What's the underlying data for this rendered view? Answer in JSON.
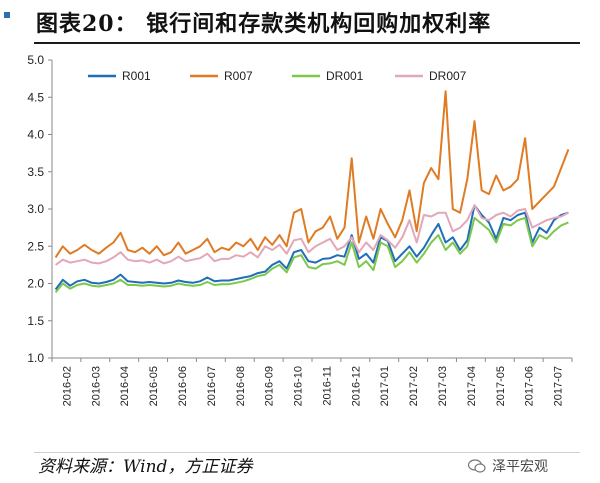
{
  "title": "图表20：  银行间和存款类机构回购加权利率",
  "source": "资料来源：Wind，方正证券",
  "brand": "泽平宏观",
  "colors": {
    "R001": "#1f6fb8",
    "R007": "#e07b24",
    "DR001": "#7cc84a",
    "DR007": "#e2a7b8",
    "axis": "#888888",
    "text": "#222222"
  },
  "chart_data": {
    "type": "line",
    "title": "",
    "xlabel": "",
    "ylabel": "",
    "ylim": [
      1.0,
      5.0
    ],
    "yticks": [
      "1.0",
      "1.5",
      "2.0",
      "2.5",
      "3.0",
      "3.5",
      "4.0",
      "4.5",
      "5.0"
    ],
    "x_categories": [
      "2016-02",
      "2016-03",
      "2016-04",
      "2016-05",
      "2016-06",
      "2016-07",
      "2016-08",
      "2016-09",
      "2016-10",
      "2016-11",
      "2016-12",
      "2017-01",
      "2017-02",
      "2017-03",
      "2017-04",
      "2017-05",
      "2017-06",
      "2017-07"
    ],
    "legend_position": "top",
    "grid": false,
    "series": [
      {
        "name": "R001",
        "x": [
          "2016-02",
          "2016-02",
          "2016-02",
          "2016-02",
          "2016-03",
          "2016-03",
          "2016-03",
          "2016-03",
          "2016-04",
          "2016-04",
          "2016-04",
          "2016-04",
          "2016-05",
          "2016-05",
          "2016-05",
          "2016-05",
          "2016-06",
          "2016-06",
          "2016-06",
          "2016-06",
          "2016-07",
          "2016-07",
          "2016-07",
          "2016-07",
          "2016-08",
          "2016-08",
          "2016-08",
          "2016-08",
          "2016-09",
          "2016-09",
          "2016-09",
          "2016-09",
          "2016-10",
          "2016-10",
          "2016-10",
          "2016-10",
          "2016-11",
          "2016-11",
          "2016-11",
          "2016-11",
          "2016-12",
          "2016-12",
          "2016-12",
          "2016-12",
          "2017-01",
          "2017-01",
          "2017-01",
          "2017-01",
          "2017-02",
          "2017-02",
          "2017-02",
          "2017-02",
          "2017-03",
          "2017-03",
          "2017-03",
          "2017-03",
          "2017-04",
          "2017-04",
          "2017-04",
          "2017-04",
          "2017-05",
          "2017-05",
          "2017-05",
          "2017-05",
          "2017-06",
          "2017-06",
          "2017-06",
          "2017-06",
          "2017-07",
          "2017-07",
          "2017-07",
          "2017-07"
        ],
        "values": [
          1.92,
          2.05,
          1.97,
          2.03,
          2.05,
          2.01,
          2.0,
          2.02,
          2.05,
          2.12,
          2.03,
          2.02,
          2.01,
          2.02,
          2.01,
          2.0,
          2.01,
          2.04,
          2.02,
          2.01,
          2.03,
          2.08,
          2.03,
          2.04,
          2.04,
          2.06,
          2.08,
          2.1,
          2.14,
          2.16,
          2.25,
          2.3,
          2.2,
          2.42,
          2.45,
          2.3,
          2.28,
          2.33,
          2.34,
          2.38,
          2.36,
          2.65,
          2.33,
          2.4,
          2.28,
          2.62,
          2.57,
          2.3,
          2.4,
          2.5,
          2.36,
          2.48,
          2.65,
          2.8,
          2.55,
          2.62,
          2.45,
          2.58,
          3.05,
          2.92,
          2.82,
          2.6,
          2.88,
          2.85,
          2.92,
          2.95,
          2.55,
          2.75,
          2.68,
          2.85,
          2.92,
          2.95
        ]
      },
      {
        "name": "R007",
        "x": [
          "2016-02",
          "2016-02",
          "2016-02",
          "2016-02",
          "2016-03",
          "2016-03",
          "2016-03",
          "2016-03",
          "2016-04",
          "2016-04",
          "2016-04",
          "2016-04",
          "2016-05",
          "2016-05",
          "2016-05",
          "2016-05",
          "2016-06",
          "2016-06",
          "2016-06",
          "2016-06",
          "2016-07",
          "2016-07",
          "2016-07",
          "2016-07",
          "2016-08",
          "2016-08",
          "2016-08",
          "2016-08",
          "2016-09",
          "2016-09",
          "2016-09",
          "2016-09",
          "2016-10",
          "2016-10",
          "2016-10",
          "2016-10",
          "2016-11",
          "2016-11",
          "2016-11",
          "2016-11",
          "2016-12",
          "2016-12",
          "2016-12",
          "2016-12",
          "2017-01",
          "2017-01",
          "2017-01",
          "2017-01",
          "2017-02",
          "2017-02",
          "2017-02",
          "2017-02",
          "2017-03",
          "2017-03",
          "2017-03",
          "2017-03",
          "2017-04",
          "2017-04",
          "2017-04",
          "2017-04",
          "2017-05",
          "2017-05",
          "2017-05",
          "2017-05",
          "2017-06",
          "2017-06",
          "2017-06",
          "2017-06",
          "2017-07",
          "2017-07",
          "2017-07",
          "2017-07"
        ],
        "values": [
          2.35,
          2.5,
          2.4,
          2.45,
          2.52,
          2.45,
          2.4,
          2.48,
          2.55,
          2.68,
          2.45,
          2.42,
          2.48,
          2.4,
          2.5,
          2.38,
          2.42,
          2.55,
          2.4,
          2.45,
          2.5,
          2.6,
          2.42,
          2.48,
          2.45,
          2.55,
          2.5,
          2.6,
          2.45,
          2.62,
          2.52,
          2.65,
          2.5,
          2.95,
          3.0,
          2.55,
          2.7,
          2.75,
          2.9,
          2.6,
          2.75,
          3.68,
          2.55,
          2.9,
          2.6,
          3.0,
          2.8,
          2.62,
          2.85,
          3.25,
          2.7,
          3.35,
          3.55,
          3.4,
          4.58,
          3.0,
          2.95,
          3.4,
          4.18,
          3.25,
          3.2,
          3.45,
          3.25,
          3.3,
          3.4,
          3.95,
          3.0,
          3.1,
          3.2,
          3.3,
          3.55,
          3.8
        ]
      },
      {
        "name": "DR001",
        "x": [
          "2016-02",
          "2016-02",
          "2016-02",
          "2016-02",
          "2016-03",
          "2016-03",
          "2016-03",
          "2016-03",
          "2016-04",
          "2016-04",
          "2016-04",
          "2016-04",
          "2016-05",
          "2016-05",
          "2016-05",
          "2016-05",
          "2016-06",
          "2016-06",
          "2016-06",
          "2016-06",
          "2016-07",
          "2016-07",
          "2016-07",
          "2016-07",
          "2016-08",
          "2016-08",
          "2016-08",
          "2016-08",
          "2016-09",
          "2016-09",
          "2016-09",
          "2016-09",
          "2016-10",
          "2016-10",
          "2016-10",
          "2016-10",
          "2016-11",
          "2016-11",
          "2016-11",
          "2016-11",
          "2016-12",
          "2016-12",
          "2016-12",
          "2016-12",
          "2017-01",
          "2017-01",
          "2017-01",
          "2017-01",
          "2017-02",
          "2017-02",
          "2017-02",
          "2017-02",
          "2017-03",
          "2017-03",
          "2017-03",
          "2017-03",
          "2017-04",
          "2017-04",
          "2017-04",
          "2017-04",
          "2017-05",
          "2017-05",
          "2017-05",
          "2017-05",
          "2017-06",
          "2017-06",
          "2017-06",
          "2017-06",
          "2017-07",
          "2017-07",
          "2017-07",
          "2017-07"
        ],
        "values": [
          1.88,
          2.0,
          1.93,
          1.98,
          2.0,
          1.97,
          1.96,
          1.98,
          2.0,
          2.05,
          1.98,
          1.98,
          1.97,
          1.98,
          1.97,
          1.96,
          1.97,
          2.0,
          1.98,
          1.97,
          1.98,
          2.02,
          1.98,
          1.99,
          1.99,
          2.01,
          2.03,
          2.06,
          2.1,
          2.12,
          2.2,
          2.25,
          2.15,
          2.35,
          2.38,
          2.22,
          2.2,
          2.26,
          2.27,
          2.3,
          2.25,
          2.55,
          2.22,
          2.3,
          2.18,
          2.55,
          2.5,
          2.22,
          2.3,
          2.42,
          2.28,
          2.4,
          2.55,
          2.65,
          2.45,
          2.55,
          2.4,
          2.5,
          2.88,
          2.8,
          2.72,
          2.55,
          2.8,
          2.78,
          2.85,
          2.88,
          2.5,
          2.65,
          2.6,
          2.7,
          2.78,
          2.82
        ]
      },
      {
        "name": "DR007",
        "x": [
          "2016-02",
          "2016-02",
          "2016-02",
          "2016-02",
          "2016-03",
          "2016-03",
          "2016-03",
          "2016-03",
          "2016-04",
          "2016-04",
          "2016-04",
          "2016-04",
          "2016-05",
          "2016-05",
          "2016-05",
          "2016-05",
          "2016-06",
          "2016-06",
          "2016-06",
          "2016-06",
          "2016-07",
          "2016-07",
          "2016-07",
          "2016-07",
          "2016-08",
          "2016-08",
          "2016-08",
          "2016-08",
          "2016-09",
          "2016-09",
          "2016-09",
          "2016-09",
          "2016-10",
          "2016-10",
          "2016-10",
          "2016-10",
          "2016-11",
          "2016-11",
          "2016-11",
          "2016-11",
          "2016-12",
          "2016-12",
          "2016-12",
          "2016-12",
          "2017-01",
          "2017-01",
          "2017-01",
          "2017-01",
          "2017-02",
          "2017-02",
          "2017-02",
          "2017-02",
          "2017-03",
          "2017-03",
          "2017-03",
          "2017-03",
          "2017-04",
          "2017-04",
          "2017-04",
          "2017-04",
          "2017-05",
          "2017-05",
          "2017-05",
          "2017-05",
          "2017-06",
          "2017-06",
          "2017-06",
          "2017-06",
          "2017-07",
          "2017-07",
          "2017-07",
          "2017-07"
        ],
        "values": [
          2.25,
          2.32,
          2.28,
          2.3,
          2.32,
          2.28,
          2.27,
          2.3,
          2.35,
          2.42,
          2.32,
          2.3,
          2.31,
          2.28,
          2.32,
          2.27,
          2.3,
          2.36,
          2.3,
          2.32,
          2.34,
          2.4,
          2.3,
          2.33,
          2.33,
          2.38,
          2.36,
          2.42,
          2.35,
          2.5,
          2.45,
          2.52,
          2.4,
          2.58,
          2.6,
          2.42,
          2.5,
          2.55,
          2.6,
          2.45,
          2.5,
          2.62,
          2.42,
          2.55,
          2.45,
          2.65,
          2.58,
          2.48,
          2.62,
          2.85,
          2.55,
          2.92,
          2.9,
          2.95,
          2.95,
          2.7,
          2.75,
          2.85,
          3.05,
          2.88,
          2.85,
          2.92,
          2.95,
          2.9,
          2.98,
          3.0,
          2.75,
          2.8,
          2.85,
          2.88,
          2.9,
          2.95
        ]
      }
    ]
  }
}
